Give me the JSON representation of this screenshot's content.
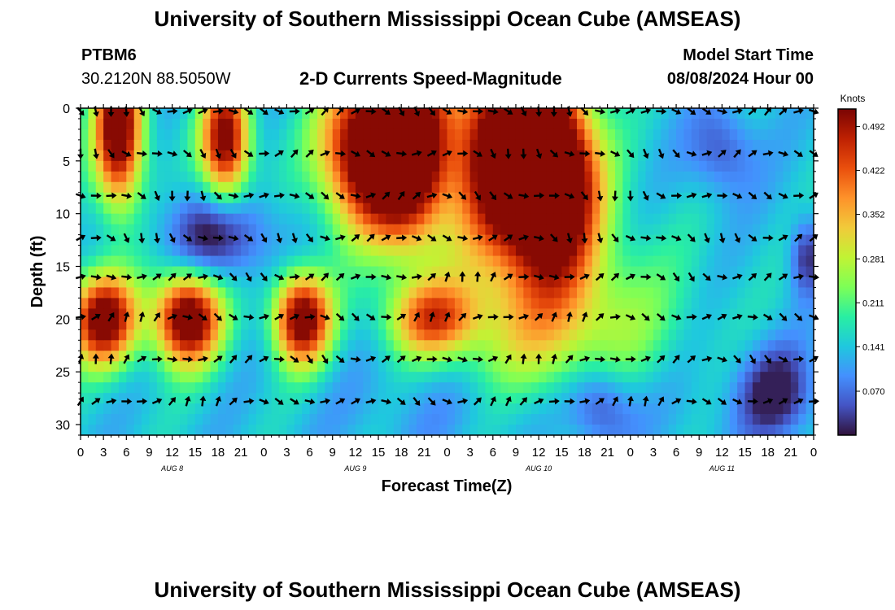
{
  "header": {
    "title": "University of Southern Mississippi Ocean Cube (AMSEAS)",
    "station": "PTBM6",
    "location": "30.2120N  88.5050W",
    "subtitle": "2-D Currents Speed-Magnitude",
    "model_label": "Model Start Time",
    "model_time": "08/08/2024 Hour 00"
  },
  "footer": {
    "title": "University of Southern Mississippi Ocean Cube (AMSEAS)"
  },
  "chart_data": {
    "type": "heatmap",
    "title": "2-D Currents Speed-Magnitude",
    "xlabel": "Forecast Time(Z)",
    "ylabel": "Depth (ft)",
    "x_range_hours": [
      0,
      96
    ],
    "y_range_ft": [
      0,
      31
    ],
    "x_tick_labels": [
      "0",
      "3",
      "6",
      "9",
      "12",
      "15",
      "18",
      "21",
      "0",
      "3",
      "6",
      "9",
      "12",
      "15",
      "18",
      "21",
      "0",
      "3",
      "6",
      "9",
      "12",
      "15",
      "18",
      "21",
      "0",
      "3",
      "6",
      "9",
      "12",
      "15",
      "18",
      "21",
      "0"
    ],
    "date_labels": [
      {
        "label": "AUG 8",
        "hour": 12
      },
      {
        "label": "AUG 9",
        "hour": 36
      },
      {
        "label": "AUG 10",
        "hour": 60
      },
      {
        "label": "AUG 11",
        "hour": 84
      }
    ],
    "y_ticks": [
      0,
      5,
      10,
      15,
      20,
      25,
      30
    ],
    "colorbar": {
      "unit": "Knots",
      "ticks": [
        0.07,
        0.141,
        0.211,
        0.281,
        0.352,
        0.422,
        0.492
      ],
      "tick_labels": [
        "0.070",
        "0.141",
        "0.211",
        "0.281",
        "0.352",
        "0.422",
        "0.492"
      ],
      "range": [
        0.0,
        0.52
      ],
      "colors": [
        "#30123b",
        "#4454c4",
        "#4490fe",
        "#1fc8de",
        "#29efa2",
        "#7dff56",
        "#c1f334",
        "#f1ca3a",
        "#fe922a",
        "#ea4f0d",
        "#be2102",
        "#7a0403"
      ]
    },
    "arrow_depths_ft": [
      0.3,
      4.3,
      8.3,
      12.3,
      16.0,
      19.8,
      23.8,
      27.8
    ],
    "arrow_time_step_hours": 2,
    "speed_blobs": [
      {
        "t": 5,
        "d": 2,
        "st": 2.2,
        "sd": 5,
        "amp": 0.45
      },
      {
        "t": 19,
        "d": 3,
        "st": 2.2,
        "sd": 4,
        "amp": 0.4
      },
      {
        "t": 37,
        "d": 4,
        "st": 4,
        "sd": 5,
        "amp": 0.42
      },
      {
        "t": 43,
        "d": 4,
        "st": 3.5,
        "sd": 6,
        "amp": 0.48
      },
      {
        "t": 56,
        "d": 4,
        "st": 5,
        "sd": 6.5,
        "amp": 0.5
      },
      {
        "t": 62,
        "d": 7,
        "st": 4,
        "sd": 6,
        "amp": 0.48
      },
      {
        "t": 3,
        "d": 20,
        "st": 3,
        "sd": 3,
        "amp": 0.42
      },
      {
        "t": 14,
        "d": 20,
        "st": 3,
        "sd": 3,
        "amp": 0.45
      },
      {
        "t": 29,
        "d": 20,
        "st": 2.6,
        "sd": 3,
        "amp": 0.42
      },
      {
        "t": 46,
        "d": 20,
        "st": 4,
        "sd": 2.5,
        "amp": 0.25
      },
      {
        "t": 62,
        "d": 22,
        "st": 10,
        "sd": 7,
        "amp": 0.2
      },
      {
        "t": 18,
        "d": 12,
        "st": 5,
        "sd": 3,
        "amp": -0.14
      },
      {
        "t": 60,
        "d": 28,
        "st": 14,
        "sd": 4,
        "amp": -0.1
      },
      {
        "t": 68,
        "d": 28,
        "st": 3,
        "sd": 3,
        "amp": -0.12
      },
      {
        "t": 91,
        "d": 27,
        "st": 3.5,
        "sd": 3,
        "amp": -0.14
      },
      {
        "t": 84,
        "d": 4,
        "st": 3,
        "sd": 3,
        "amp": -0.1
      },
      {
        "t": 95,
        "d": 14,
        "st": 1.5,
        "sd": 2.5,
        "amp": -0.12
      }
    ]
  }
}
